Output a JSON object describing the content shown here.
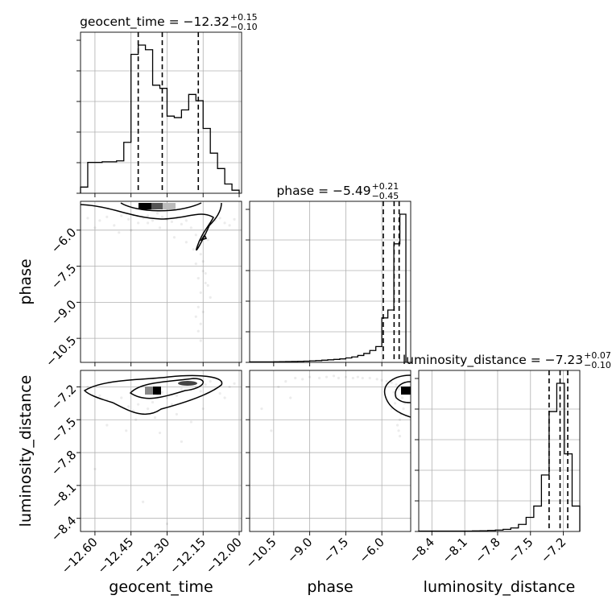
{
  "chart_data": {
    "type": "corner",
    "parameters": [
      "geocent_time",
      "phase",
      "luminosity_distance"
    ],
    "axis_labels": {
      "geocent_time": "geocent_time",
      "phase": "phase",
      "luminosity_distance": "luminosity_distance"
    },
    "ranges": {
      "geocent_time": [
        -12.66,
        -11.99
      ],
      "phase": [
        -11.5,
        -4.8
      ],
      "luminosity_distance": [
        -8.52,
        -7.05
      ]
    },
    "tick_values": {
      "geocent_time": [
        -12.6,
        -12.45,
        -12.3,
        -12.15,
        -12.0
      ],
      "phase": [
        -10.5,
        -9.0,
        -7.5,
        -6.0
      ],
      "luminosity_distance": [
        -8.4,
        -8.1,
        -7.8,
        -7.5,
        -7.2
      ]
    },
    "tick_labels": {
      "geocent_time": [
        "−12.60",
        "−12.45",
        "−12.30",
        "−12.15",
        "−12.00"
      ],
      "phase": [
        "−10.5",
        "−9.0",
        "−7.5",
        "−6.0"
      ],
      "luminosity_distance": [
        "−8.4",
        "−8.1",
        "−7.8",
        "−7.5",
        "−7.2"
      ]
    },
    "titles": [
      {
        "param": "geocent_time",
        "text": "geocent_time = −12.32",
        "sup": "+0.15",
        "sub": "−0.10"
      },
      {
        "param": "phase",
        "text": "phase = −5.49",
        "sup": "+0.21",
        "sub": "−0.45"
      },
      {
        "param": "luminosity_distance",
        "text": "luminosity_distance = −7.23",
        "sup": "+0.07",
        "sub": "−0.10"
      }
    ],
    "quantiles": {
      "geocent_time": [
        -12.42,
        -12.32,
        -12.17
      ],
      "phase": [
        -5.94,
        -5.49,
        -5.28
      ],
      "luminosity_distance": [
        -7.33,
        -7.23,
        -7.16
      ]
    },
    "histograms": {
      "geocent_time": {
        "edges": [
          -12.66,
          -12.63,
          -12.6,
          -12.57,
          -12.54,
          -12.51,
          -12.48,
          -12.45,
          -12.42,
          -12.39,
          -12.36,
          -12.33,
          -12.3,
          -12.27,
          -12.24,
          -12.21,
          -12.18,
          -12.15,
          -12.12,
          -12.09,
          -12.06,
          -12.03,
          -12.0
        ],
        "counts": [
          0.2,
          1.0,
          1.0,
          1.02,
          1.02,
          1.05,
          1.65,
          4.5,
          4.8,
          4.65,
          3.5,
          3.4,
          2.5,
          2.45,
          2.7,
          3.2,
          3.0,
          2.1,
          1.3,
          0.8,
          0.3,
          0.1
        ]
      },
      "phase": {
        "edges": [
          -11.5,
          -11.25,
          -11.0,
          -10.75,
          -10.5,
          -10.25,
          -10.0,
          -9.75,
          -9.5,
          -9.25,
          -9.0,
          -8.75,
          -8.5,
          -8.25,
          -8.0,
          -7.75,
          -7.5,
          -7.25,
          -7.0,
          -6.75,
          -6.5,
          -6.25,
          -6.0,
          -5.75,
          -5.5,
          -5.25,
          -5.0
        ],
        "counts": [
          0.5,
          0.5,
          0.5,
          0.5,
          0.6,
          0.7,
          0.8,
          0.9,
          1.0,
          1.2,
          1.5,
          1.8,
          2.2,
          2.6,
          3.0,
          3.5,
          4.5,
          5.5,
          7.0,
          9.0,
          12.0,
          16.0,
          45.0,
          53.0,
          120.0,
          150.0
        ]
      },
      "luminosity_distance": {
        "edges": [
          -8.52,
          -8.45,
          -8.38,
          -8.31,
          -8.24,
          -8.17,
          -8.1,
          -8.03,
          -7.96,
          -7.89,
          -7.82,
          -7.75,
          -7.68,
          -7.61,
          -7.54,
          -7.47,
          -7.4,
          -7.33,
          -7.26,
          -7.19,
          -7.12,
          -7.05
        ],
        "counts": [
          0.3,
          0.3,
          0.3,
          0.3,
          0.3,
          0.3,
          0.3,
          0.4,
          0.5,
          0.7,
          1.0,
          1.5,
          2.5,
          5.0,
          10.0,
          18.0,
          40.0,
          85.0,
          105.0,
          55.0,
          18.0
        ]
      }
    },
    "samples_2d": {
      "phase_vs_geocent_time": {
        "x": [
          -12.63,
          -12.58,
          -12.55,
          -12.52,
          -12.49,
          -12.46,
          -12.44,
          -12.42,
          -12.4,
          -12.38,
          -12.36,
          -12.34,
          -12.32,
          -12.3,
          -12.28,
          -12.26,
          -12.24,
          -12.22,
          -12.2,
          -12.18,
          -12.17,
          -12.16,
          -12.15,
          -12.14,
          -12.13,
          -12.12,
          -12.1,
          -12.08,
          -12.06,
          -12.04,
          -12.02,
          -12.19,
          -12.18,
          -12.17,
          -12.16,
          -12.17,
          -12.18,
          -12.16,
          -12.15,
          -12.14,
          -12.17,
          -12.16,
          -12.15,
          -12.13,
          -12.6,
          -12.5,
          -12.45,
          -12.38,
          -12.33,
          -12.27,
          -12.22
        ],
        "y": [
          -5.5,
          -5.6,
          -5.45,
          -5.8,
          -5.4,
          -5.55,
          -5.35,
          -5.7,
          -5.5,
          -5.4,
          -5.6,
          -5.3,
          -5.45,
          -5.55,
          -5.65,
          -5.5,
          -5.75,
          -5.6,
          -5.9,
          -6.2,
          -6.6,
          -7.0,
          -7.3,
          -7.8,
          -8.3,
          -8.8,
          -5.6,
          -5.5,
          -5.7,
          -5.8,
          -5.55,
          -6.8,
          -7.4,
          -8.0,
          -8.6,
          -9.2,
          -9.6,
          -9.9,
          -9.4,
          -8.2,
          -10.2,
          -10.6,
          -7.7,
          -6.4,
          -5.9,
          -6.1,
          -6.0,
          -5.7,
          -5.9,
          -6.3,
          -6.5
        ]
      },
      "luminosity_distance_vs_geocent_time": {
        "x": [
          -12.63,
          -12.58,
          -12.55,
          -12.52,
          -12.49,
          -12.46,
          -12.44,
          -12.42,
          -12.4,
          -12.38,
          -12.36,
          -12.34,
          -12.32,
          -12.3,
          -12.28,
          -12.26,
          -12.24,
          -12.22,
          -12.2,
          -12.18,
          -12.16,
          -12.14,
          -12.12,
          -12.1,
          -12.08,
          -12.06,
          -12.04,
          -12.02,
          -12.55,
          -12.47,
          -12.43,
          -12.35,
          -12.26,
          -12.2,
          -12.15,
          -12.4,
          -12.3,
          -12.6,
          -12.24,
          -12.33
        ],
        "y": [
          -7.2,
          -7.28,
          -7.32,
          -7.35,
          -7.3,
          -7.38,
          -7.42,
          -7.36,
          -7.45,
          -7.4,
          -7.34,
          -7.28,
          -7.25,
          -7.3,
          -7.36,
          -7.28,
          -7.22,
          -7.18,
          -7.16,
          -7.2,
          -7.24,
          -7.18,
          -7.15,
          -7.22,
          -7.26,
          -7.3,
          -7.2,
          -7.17,
          -7.55,
          -7.6,
          -7.5,
          -7.48,
          -7.45,
          -7.52,
          -7.4,
          -8.25,
          -8.45,
          -7.95,
          -7.7,
          -7.62
        ]
      },
      "luminosity_distance_vs_phase": {
        "x": [
          -5.2,
          -5.3,
          -5.4,
          -5.5,
          -5.6,
          -5.8,
          -6.0,
          -6.2,
          -6.5,
          -6.8,
          -7.0,
          -7.2,
          -7.5,
          -7.8,
          -8.0,
          -8.3,
          -8.6,
          -9.0,
          -9.3,
          -9.6,
          -10.0,
          -5.1,
          -5.2,
          -5.25,
          -5.35,
          -5.45,
          -5.3,
          -5.15,
          -5.05,
          -5.4,
          -5.6,
          -5.25,
          -9.8,
          -10.3,
          -11.0,
          -10.6
        ],
        "y": [
          -7.2,
          -7.22,
          -7.18,
          -7.25,
          -7.16,
          -7.15,
          -7.14,
          -7.13,
          -7.12,
          -7.12,
          -7.11,
          -7.12,
          -7.11,
          -7.12,
          -7.1,
          -7.11,
          -7.12,
          -7.11,
          -7.13,
          -7.12,
          -7.15,
          -7.4,
          -7.45,
          -7.5,
          -7.55,
          -7.35,
          -7.6,
          -7.3,
          -7.35,
          -7.28,
          -7.4,
          -7.65,
          -7.3,
          -7.2,
          -7.4,
          -7.6
        ]
      }
    },
    "grid": true
  }
}
